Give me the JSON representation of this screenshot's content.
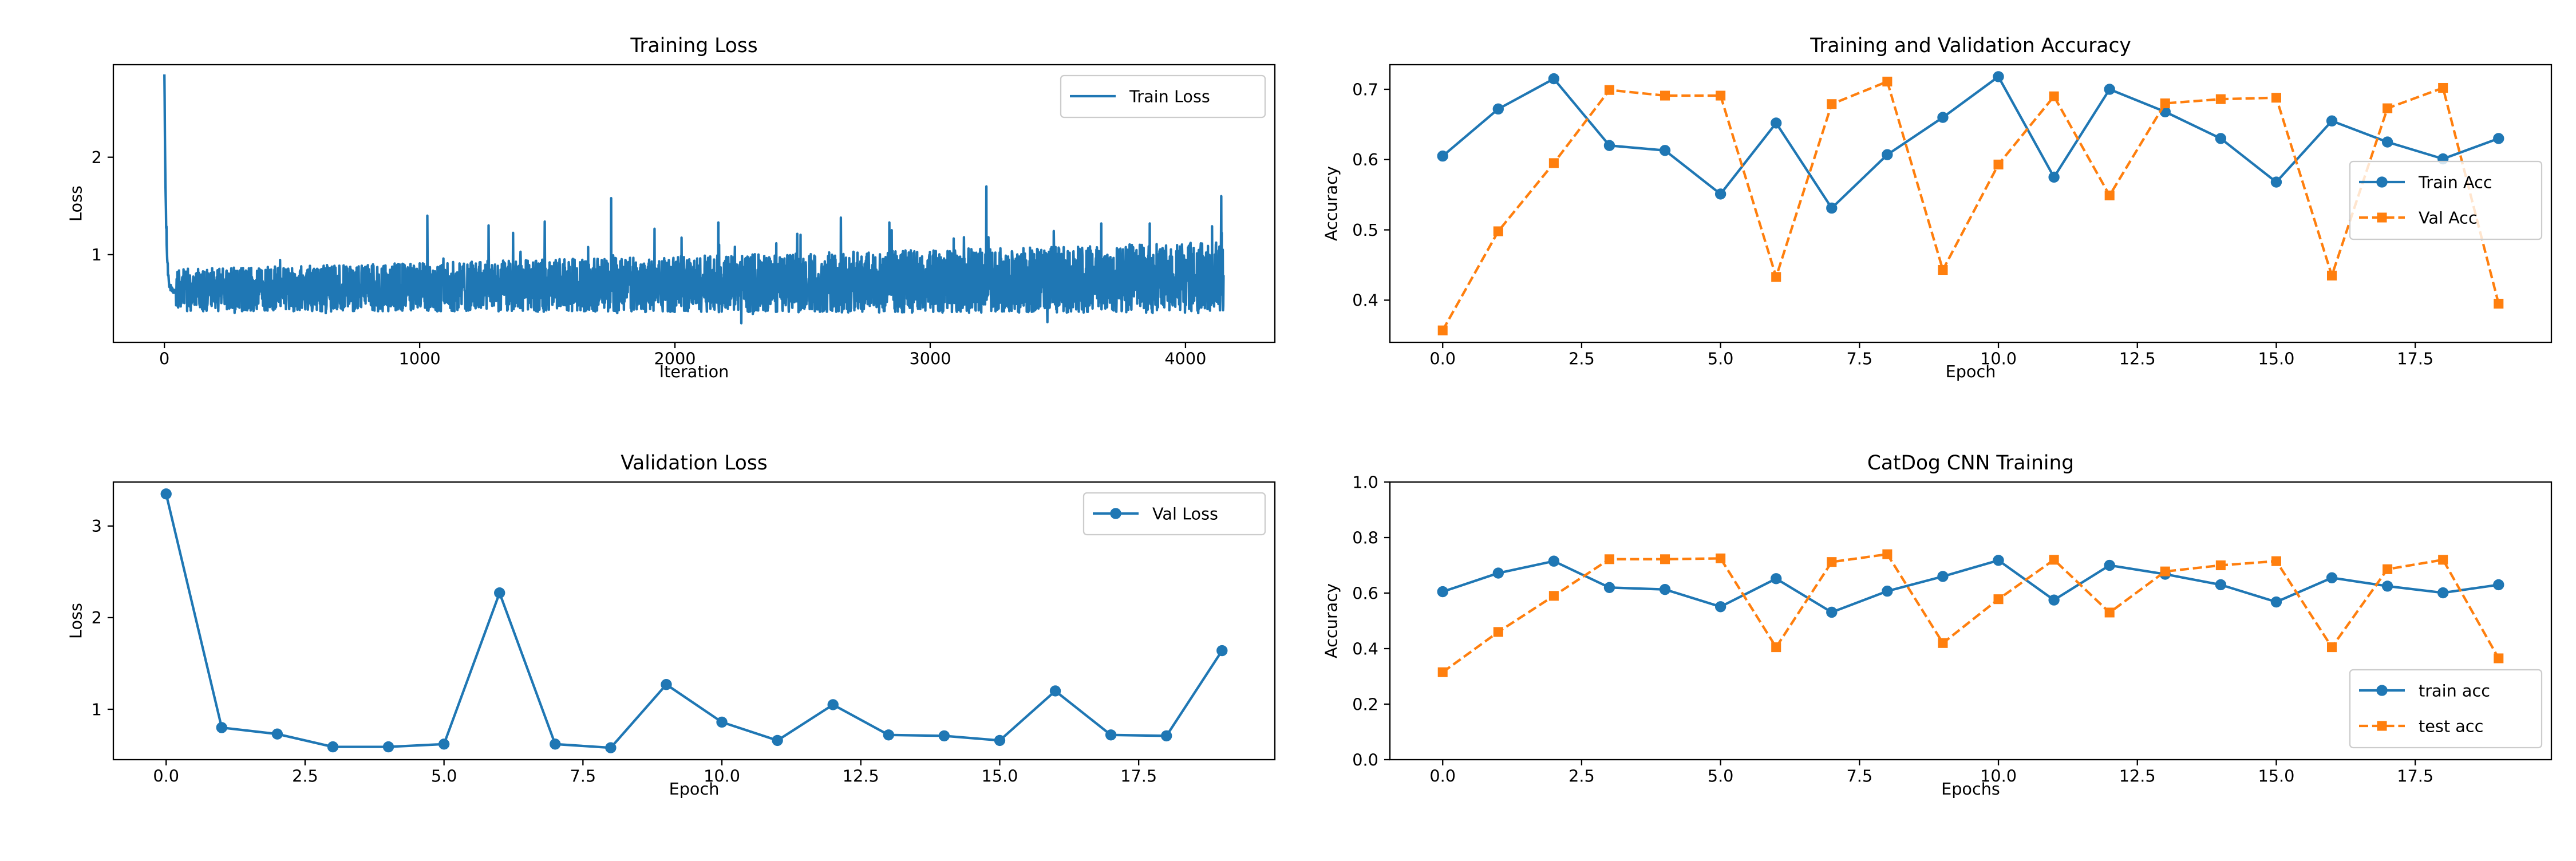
{
  "colors": {
    "blue": "#1f77b4",
    "orange": "#ff7f0e"
  },
  "chart_data": [
    {
      "id": "train_loss",
      "type": "line",
      "title": "Training Loss",
      "xlabel": "Iteration",
      "ylabel": "Loss",
      "xlim": [
        -200,
        4350
      ],
      "ylim": [
        0.1,
        2.95
      ],
      "xticks": [
        0,
        1000,
        2000,
        3000,
        4000
      ],
      "xtick_labels": [
        "0",
        "1000",
        "2000",
        "3000",
        "4000"
      ],
      "yticks": [
        1,
        2
      ],
      "ytick_labels": [
        "1",
        "2"
      ],
      "grid": false,
      "legend": {
        "placement": "upper-right",
        "entries": [
          "Train Loss"
        ]
      },
      "series": [
        {
          "name": "Train Loss",
          "color": "#1f77b4",
          "marker": "none",
          "dash": "solid",
          "n_points": 4150,
          "initial_value": 2.85,
          "band_low": 0.42,
          "band_high": 0.85,
          "spikes": [
            [
              1030,
              1.4
            ],
            [
              1270,
              1.3
            ],
            [
              1490,
              1.34
            ],
            [
              1750,
              1.58
            ],
            [
              2170,
              1.33
            ],
            [
              2650,
              1.38
            ],
            [
              2840,
              1.33
            ],
            [
              3220,
              1.7
            ],
            [
              3670,
              1.32
            ],
            [
              3860,
              1.32
            ],
            [
              4140,
              1.6
            ]
          ]
        }
      ]
    },
    {
      "id": "acc",
      "type": "line",
      "title": "Training and Validation Accuracy",
      "xlabel": "Epoch",
      "ylabel": "Accuracy",
      "xlim": [
        -0.95,
        19.95
      ],
      "ylim": [
        0.34,
        0.735
      ],
      "xticks": [
        0,
        2.5,
        5,
        7.5,
        10,
        12.5,
        15,
        17.5
      ],
      "xtick_labels": [
        "0.0",
        "2.5",
        "5.0",
        "7.5",
        "10.0",
        "12.5",
        "15.0",
        "17.5"
      ],
      "yticks": [
        0.4,
        0.5,
        0.6,
        0.7
      ],
      "ytick_labels": [
        "0.4",
        "0.5",
        "0.6",
        "0.7"
      ],
      "grid": false,
      "legend": {
        "placement": "center-right",
        "entries": [
          "Train Acc",
          "Val Acc"
        ]
      },
      "x": [
        0,
        1,
        2,
        3,
        4,
        5,
        6,
        7,
        8,
        9,
        10,
        11,
        12,
        13,
        14,
        15,
        16,
        17,
        18,
        19
      ],
      "series": [
        {
          "name": "Train Acc",
          "color": "#1f77b4",
          "marker": "circle",
          "dash": "solid",
          "values": [
            0.605,
            0.672,
            0.715,
            0.62,
            0.613,
            0.551,
            0.652,
            0.531,
            0.607,
            0.66,
            0.718,
            0.575,
            0.7,
            0.668,
            0.63,
            0.568,
            0.655,
            0.625,
            0.601,
            0.63
          ]
        },
        {
          "name": "Val Acc",
          "color": "#ff7f0e",
          "marker": "square",
          "dash": "dashed",
          "values": [
            0.357,
            0.498,
            0.595,
            0.699,
            0.691,
            0.691,
            0.433,
            0.679,
            0.711,
            0.443,
            0.593,
            0.69,
            0.549,
            0.68,
            0.686,
            0.688,
            0.435,
            0.673,
            0.702,
            0.395
          ]
        }
      ]
    },
    {
      "id": "val_loss",
      "type": "line",
      "title": "Validation Loss",
      "xlabel": "Epoch",
      "ylabel": "Loss",
      "xlim": [
        -0.95,
        19.95
      ],
      "ylim": [
        0.45,
        3.48
      ],
      "xticks": [
        0,
        2.5,
        5,
        7.5,
        10,
        12.5,
        15,
        17.5
      ],
      "xtick_labels": [
        "0.0",
        "2.5",
        "5.0",
        "7.5",
        "10.0",
        "12.5",
        "15.0",
        "17.5"
      ],
      "yticks": [
        1,
        2,
        3
      ],
      "ytick_labels": [
        "1",
        "2",
        "3"
      ],
      "grid": false,
      "legend": {
        "placement": "upper-right",
        "entries": [
          "Val Loss"
        ]
      },
      "x": [
        0,
        1,
        2,
        3,
        4,
        5,
        6,
        7,
        8,
        9,
        10,
        11,
        12,
        13,
        14,
        15,
        16,
        17,
        18,
        19
      ],
      "series": [
        {
          "name": "Val Loss",
          "color": "#1f77b4",
          "marker": "circle",
          "dash": "solid",
          "values": [
            3.35,
            0.8,
            0.73,
            0.59,
            0.59,
            0.62,
            2.27,
            0.62,
            0.58,
            1.27,
            0.86,
            0.66,
            1.05,
            0.72,
            0.71,
            0.66,
            1.2,
            0.72,
            0.71,
            1.64
          ]
        }
      ]
    },
    {
      "id": "catdog",
      "type": "line",
      "title": "CatDog CNN Training",
      "xlabel": "Epochs",
      "ylabel": "Accuracy",
      "xlim": [
        -0.95,
        19.95
      ],
      "ylim": [
        0,
        1.0
      ],
      "xticks": [
        0,
        2.5,
        5,
        7.5,
        10,
        12.5,
        15,
        17.5
      ],
      "xtick_labels": [
        "0.0",
        "2.5",
        "5.0",
        "7.5",
        "10.0",
        "12.5",
        "15.0",
        "17.5"
      ],
      "yticks": [
        0,
        0.2,
        0.4,
        0.6,
        0.8,
        1.0
      ],
      "ytick_labels": [
        "0.0",
        "0.2",
        "0.4",
        "0.6",
        "0.8",
        "1.0"
      ],
      "grid": false,
      "legend": {
        "placement": "lower-right",
        "entries": [
          "train acc",
          "test acc"
        ]
      },
      "x": [
        0,
        1,
        2,
        3,
        4,
        5,
        6,
        7,
        8,
        9,
        10,
        11,
        12,
        13,
        14,
        15,
        16,
        17,
        18,
        19
      ],
      "series": [
        {
          "name": "train acc",
          "color": "#1f77b4",
          "marker": "circle",
          "dash": "solid",
          "values": [
            0.605,
            0.672,
            0.715,
            0.62,
            0.613,
            0.551,
            0.652,
            0.531,
            0.607,
            0.66,
            0.718,
            0.575,
            0.7,
            0.668,
            0.63,
            0.568,
            0.655,
            0.625,
            0.601,
            0.63
          ]
        },
        {
          "name": "test acc",
          "color": "#ff7f0e",
          "marker": "square",
          "dash": "dashed",
          "values": [
            0.315,
            0.46,
            0.59,
            0.722,
            0.722,
            0.725,
            0.405,
            0.712,
            0.74,
            0.42,
            0.578,
            0.72,
            0.53,
            0.678,
            0.7,
            0.715,
            0.405,
            0.686,
            0.72,
            0.365
          ]
        }
      ]
    }
  ]
}
